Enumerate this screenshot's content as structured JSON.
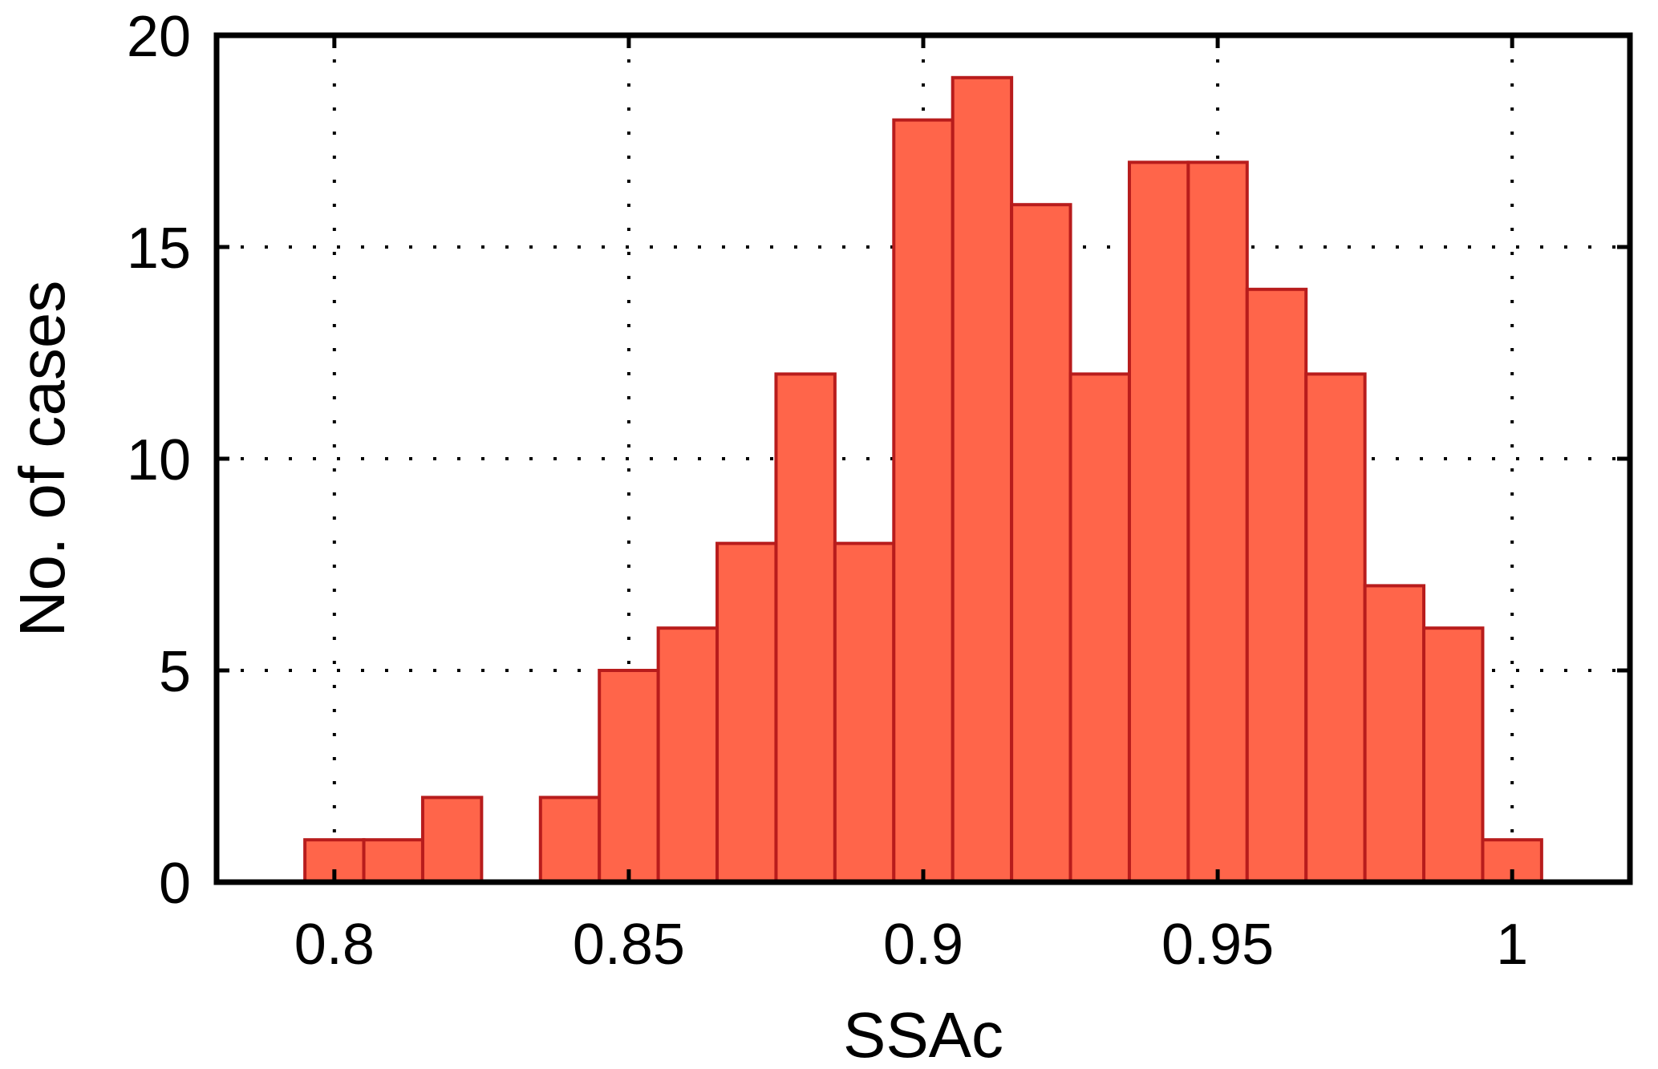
{
  "chart_data": {
    "type": "bar",
    "title": "",
    "xlabel": "SSAc",
    "ylabel": "No. of cases",
    "xlim": [
      0.78,
      1.02
    ],
    "ylim": [
      0,
      20
    ],
    "xticks": [
      0.8,
      0.85,
      0.9,
      0.95,
      1
    ],
    "xtick_labels": [
      "0.8",
      "0.85",
      "0.9",
      "0.95",
      "1"
    ],
    "yticks": [
      0,
      5,
      10,
      15,
      20
    ],
    "ytick_labels": [
      "0",
      "5",
      "10",
      "15",
      "20"
    ],
    "grid": true,
    "bin_width": 0.01,
    "categories": [
      "0.79",
      "0.80",
      "0.81",
      "0.82",
      "0.83",
      "0.84",
      "0.85",
      "0.86",
      "0.87",
      "0.88",
      "0.89",
      "0.90",
      "0.91",
      "0.92",
      "0.93",
      "0.94",
      "0.95",
      "0.96",
      "0.97",
      "0.98",
      "0.99",
      "1.00"
    ],
    "values": [
      0,
      1,
      1,
      2,
      0,
      2,
      5,
      6,
      8,
      12,
      8,
      18,
      19,
      16,
      12,
      17,
      17,
      14,
      12,
      7,
      6,
      1
    ],
    "colors": {
      "bar_fill": "#ff654a",
      "bar_edge": "#b81c1c"
    }
  }
}
